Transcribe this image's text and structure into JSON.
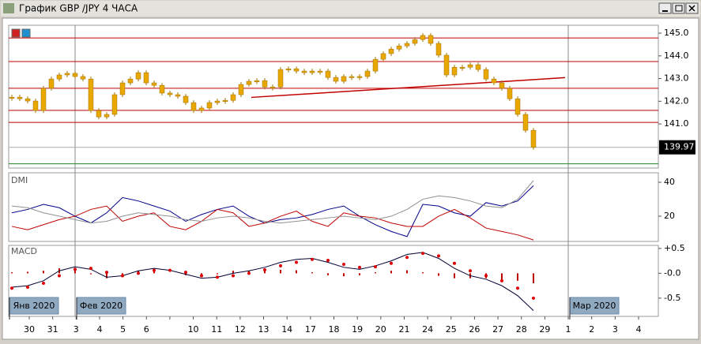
{
  "window": {
    "title": "График GBP /JPY  4 ЧАСА"
  },
  "chart_data": [
    {
      "type": "candlestick",
      "values": [
        142.18,
        142.11,
        142.01,
        141.59,
        142.57,
        142.98,
        143.16,
        143.23,
        143.09,
        142.98,
        141.59,
        141.31,
        141.42,
        142.29,
        142.81,
        142.98,
        143.26,
        142.81,
        142.7,
        142.36,
        142.29,
        142.22,
        141.94,
        141.59,
        141.7,
        141.94,
        142.01,
        142.04,
        142.29,
        142.74,
        142.88,
        142.91,
        142.63,
        142.63,
        143.4,
        143.43,
        143.33,
        143.26,
        143.33,
        143.33,
        143.05,
        142.88,
        143.09,
        143.09,
        143.09,
        143.33,
        143.85,
        144.1,
        144.3,
        144.44,
        144.55,
        144.72,
        144.9,
        144.55,
        144.03,
        143.16,
        143.5,
        143.5,
        143.61,
        143.4,
        142.98,
        142.81,
        142.57,
        142.11,
        141.42,
        140.72,
        139.97
      ],
      "color": "#e8a800",
      "ylim": [
        139.09,
        145.35
      ],
      "yticks": [
        {
          "value": 141,
          "label": "141.0"
        },
        {
          "value": 142,
          "label": "142.0"
        },
        {
          "value": 143,
          "label": "143.0"
        },
        {
          "value": 144,
          "label": "144.0"
        },
        {
          "value": 145,
          "label": "145.0"
        }
      ],
      "levels": [
        144.79,
        143.75,
        142.57,
        141.6,
        141.07
      ],
      "level_color": "#c00000",
      "support": 139.24,
      "support_color": "#1a8a1a",
      "trendline": [
        142.17,
        143.04
      ],
      "last_price": 139.97
    },
    {
      "type": "line",
      "title": "DMI",
      "ylim": [
        5.6,
        44.2
      ],
      "yticks": [
        20,
        40
      ],
      "series": [
        {
          "color": "#00008b",
          "values": [
            22,
            24,
            27,
            25,
            20,
            16,
            22,
            31,
            29,
            26,
            23,
            17,
            21,
            24,
            26,
            20,
            16,
            18,
            19,
            21,
            24,
            26,
            20,
            15,
            11,
            8,
            27,
            26,
            22,
            20,
            28,
            26,
            29,
            38
          ]
        },
        {
          "color": "#c00000",
          "values": [
            14,
            12,
            15,
            18,
            20,
            24,
            26,
            17,
            20,
            22,
            14,
            12,
            17,
            24,
            22,
            14,
            16,
            20,
            23,
            17,
            14,
            22,
            20,
            19,
            16,
            14,
            14,
            20,
            24,
            19,
            13,
            11,
            9,
            6
          ]
        },
        {
          "color": "#909090",
          "values": [
            26,
            25,
            22,
            20,
            18,
            16,
            17,
            20,
            22,
            21,
            20,
            18,
            17,
            19,
            20,
            19,
            17,
            16,
            17,
            18,
            19,
            20,
            19,
            18,
            20,
            24,
            30,
            32,
            31,
            29,
            26,
            25,
            30,
            41
          ]
        }
      ]
    },
    {
      "type": "macd",
      "title": "MACD",
      "ylim": [
        -0.82,
        0.53
      ],
      "yticks": [
        {
          "value": 0.5,
          "label": "+0.5"
        },
        {
          "value": 0,
          "label": "-0.0"
        },
        -0.5
      ],
      "series": [
        {
          "type": "bar",
          "color": "#c00000",
          "values": [
            0.02,
            0.03,
            0.05,
            0.1,
            0.05,
            -0.02,
            -0.1,
            -0.05,
            0.05,
            0.04,
            0.0,
            -0.04,
            -0.05,
            -0.02,
            0.05,
            0.05,
            0.05,
            0.07,
            0.06,
            0.02,
            -0.04,
            -0.06,
            -0.04,
            0.02,
            0.05,
            0.06,
            0.02,
            -0.05,
            -0.1,
            -0.1,
            -0.1,
            -0.12,
            -0.15,
            -0.2
          ]
        },
        {
          "type": "line",
          "color": "#000033",
          "values": [
            -0.28,
            -0.25,
            -0.15,
            0.05,
            0.13,
            0.08,
            -0.08,
            -0.05,
            0.05,
            0.1,
            0.06,
            -0.02,
            -0.1,
            -0.08,
            0.0,
            0.05,
            0.12,
            0.22,
            0.28,
            0.3,
            0.22,
            0.12,
            0.08,
            0.15,
            0.25,
            0.38,
            0.42,
            0.3,
            0.1,
            -0.05,
            -0.12,
            -0.25,
            -0.45,
            -0.75
          ]
        },
        {
          "type": "dots",
          "color": "#dd0000",
          "values": [
            -0.3,
            -0.28,
            -0.2,
            -0.05,
            0.08,
            0.1,
            0.02,
            -0.05,
            0.0,
            0.06,
            0.06,
            0.02,
            -0.05,
            -0.08,
            -0.05,
            0.0,
            0.07,
            0.15,
            0.22,
            0.28,
            0.26,
            0.18,
            0.12,
            0.13,
            0.2,
            0.32,
            0.4,
            0.35,
            0.2,
            0.05,
            -0.05,
            -0.15,
            -0.3,
            -0.5
          ]
        }
      ]
    }
  ],
  "x_axis": {
    "categories": [
      "30",
      "31",
      "3",
      "4",
      "5",
      "6",
      null,
      "10",
      "11",
      "12",
      "13",
      "14",
      "17",
      "18",
      "19",
      "20",
      "21",
      "24",
      "25",
      "26",
      "27",
      "28",
      "29",
      "1",
      "2",
      "3",
      "4"
    ]
  },
  "periods": [
    "Янв 2020",
    "Фев 2020",
    "Мар 2020"
  ]
}
